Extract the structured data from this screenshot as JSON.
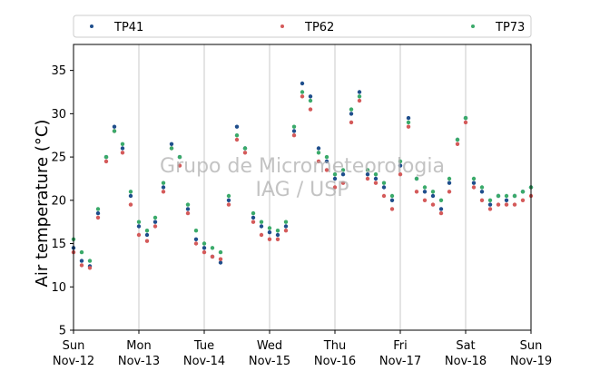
{
  "chart_data": {
    "type": "scatter",
    "ylabel": "Air temperature (°C)",
    "ylim": [
      5,
      38
    ],
    "yticks": [
      5,
      10,
      15,
      20,
      25,
      30,
      35
    ],
    "xlim": [
      "2017-11-12T00:00",
      "2017-11-19T00:00"
    ],
    "xticks": [
      {
        "date": "2017-11-12",
        "day": "Sun",
        "date_label": "Nov-12"
      },
      {
        "date": "2017-11-13",
        "day": "Mon",
        "date_label": "Nov-13"
      },
      {
        "date": "2017-11-14",
        "day": "Tue",
        "date_label": "Nov-14"
      },
      {
        "date": "2017-11-15",
        "day": "Wed",
        "date_label": "Nov-15"
      },
      {
        "date": "2017-11-16",
        "day": "Thu",
        "date_label": "Nov-16"
      },
      {
        "date": "2017-11-17",
        "day": "Fri",
        "date_label": "Nov-17"
      },
      {
        "date": "2017-11-18",
        "day": "Sat",
        "date_label": "Nov-18"
      },
      {
        "date": "2017-11-19",
        "day": "Sun",
        "date_label": "Nov-19"
      }
    ],
    "grid": "vertical",
    "legend_position": "top",
    "watermark": [
      "Grupo de Micrometeorologia",
      "IAG / USP"
    ],
    "x": [
      "2017-11-12T00:00",
      "2017-11-12T03:00",
      "2017-11-12T06:00",
      "2017-11-12T09:00",
      "2017-11-12T12:00",
      "2017-11-12T15:00",
      "2017-11-12T18:00",
      "2017-11-12T21:00",
      "2017-11-13T00:00",
      "2017-11-13T03:00",
      "2017-11-13T06:00",
      "2017-11-13T09:00",
      "2017-11-13T12:00",
      "2017-11-13T15:00",
      "2017-11-13T18:00",
      "2017-11-13T21:00",
      "2017-11-14T00:00",
      "2017-11-14T03:00",
      "2017-11-14T06:00",
      "2017-11-14T09:00",
      "2017-11-14T12:00",
      "2017-11-14T15:00",
      "2017-11-14T18:00",
      "2017-11-14T21:00",
      "2017-11-15T00:00",
      "2017-11-15T03:00",
      "2017-11-15T06:00",
      "2017-11-15T09:00",
      "2017-11-15T12:00",
      "2017-11-15T15:00",
      "2017-11-15T18:00",
      "2017-11-15T21:00",
      "2017-11-16T00:00",
      "2017-11-16T03:00",
      "2017-11-16T06:00",
      "2017-11-16T09:00",
      "2017-11-16T12:00",
      "2017-11-16T15:00",
      "2017-11-16T18:00",
      "2017-11-16T21:00",
      "2017-11-17T00:00",
      "2017-11-17T03:00",
      "2017-11-17T06:00",
      "2017-11-17T09:00",
      "2017-11-17T12:00",
      "2017-11-17T15:00",
      "2017-11-17T18:00",
      "2017-11-17T21:00",
      "2017-11-18T00:00",
      "2017-11-18T03:00",
      "2017-11-18T06:00",
      "2017-11-18T09:00",
      "2017-11-18T12:00",
      "2017-11-18T15:00",
      "2017-11-18T18:00",
      "2017-11-18T21:00",
      "2017-11-19T00:00"
    ],
    "series": [
      {
        "name": "TP41",
        "color": "#1f4e8c",
        "values": [
          14.5,
          13.0,
          12.4,
          18.5,
          25.0,
          28.5,
          26.0,
          20.5,
          17.0,
          16.0,
          17.5,
          21.5,
          26.5,
          25.0,
          19.0,
          15.5,
          14.5,
          13.5,
          12.8,
          20.0,
          28.5,
          26.0,
          18.0,
          17.0,
          16.3,
          16.0,
          17.0,
          28.0,
          33.5,
          32.0,
          26.0,
          24.5,
          22.5,
          23.0,
          30.0,
          32.5,
          23.0,
          22.5,
          21.5,
          20.0,
          24.0,
          29.5,
          22.5,
          21.0,
          20.5,
          19.0,
          22.0,
          27.0,
          29.5,
          22.0,
          21.0,
          19.5,
          20.5,
          20.0,
          20.5,
          21.0,
          21.5
        ]
      },
      {
        "name": "TP62",
        "color": "#d45a5a",
        "values": [
          14.0,
          12.5,
          12.2,
          18.0,
          24.5,
          28.0,
          25.5,
          19.5,
          16.0,
          15.3,
          17.0,
          21.0,
          26.0,
          24.0,
          18.5,
          15.0,
          14.0,
          13.5,
          13.2,
          19.5,
          27.0,
          25.5,
          17.5,
          16.0,
          15.5,
          15.5,
          16.5,
          27.5,
          32.0,
          30.5,
          24.5,
          23.5,
          21.5,
          22.0,
          29.0,
          31.5,
          22.5,
          22.0,
          20.5,
          19.0,
          23.0,
          28.5,
          21.0,
          20.0,
          19.5,
          18.5,
          21.0,
          26.5,
          29.0,
          21.5,
          20.0,
          19.0,
          19.5,
          19.5,
          19.5,
          20.0,
          20.5
        ]
      },
      {
        "name": "TP73",
        "color": "#3aaa6a",
        "values": [
          15.5,
          14.0,
          13.0,
          19.0,
          25.0,
          28.0,
          26.5,
          21.0,
          17.5,
          16.5,
          18.0,
          22.0,
          26.0,
          25.0,
          19.5,
          16.5,
          15.0,
          14.5,
          14.0,
          20.5,
          27.5,
          26.0,
          18.5,
          17.5,
          16.8,
          16.5,
          17.5,
          28.5,
          32.5,
          31.5,
          25.5,
          25.0,
          23.0,
          23.5,
          30.5,
          32.0,
          23.5,
          23.0,
          22.0,
          20.5,
          24.5,
          29.0,
          22.5,
          21.5,
          21.0,
          20.0,
          22.5,
          27.0,
          29.5,
          22.5,
          21.5,
          20.0,
          20.5,
          20.5,
          20.5,
          21.0,
          21.5
        ]
      }
    ]
  }
}
